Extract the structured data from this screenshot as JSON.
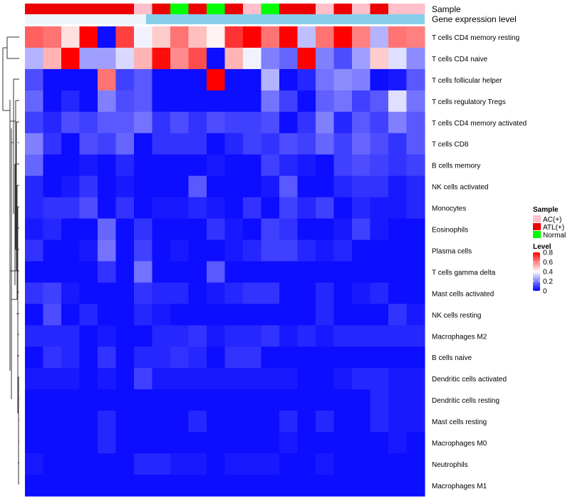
{
  "chart_data": {
    "type": "heatmap",
    "title": "",
    "annotation_tracks": [
      "Sample",
      "Gene expression level"
    ],
    "sample_groups": [
      "ATL",
      "ATL",
      "ATL",
      "ATL",
      "ATL",
      "ATL",
      "AC",
      "ATL",
      "Normal",
      "ATL",
      "Normal",
      "ATL",
      "AC",
      "Normal",
      "ATL",
      "ATL",
      "AC",
      "ATL",
      "AC",
      "ATL",
      "AC",
      "AC"
    ],
    "rows": [
      "T cells CD4 memory resting",
      "T cells CD4 naive",
      "T cells follicular helper",
      "T cells regulatory  Tregs",
      "T cells CD4 memory activated",
      "T cells CD8",
      "B cells memory",
      "NK cells activated",
      "Monocytes",
      "Eosinophils",
      "Plasma cells",
      "T cells gamma delta",
      "Mast cells activated",
      "NK cells resting",
      "Macrophages M2",
      "B cells naive",
      "Dendritic cells activated",
      "Dendritic cells resting",
      "Mast cells resting",
      "Macrophages M0",
      "Neutrophils",
      "Macrophages M1"
    ],
    "values": [
      [
        0.65,
        0.62,
        0.45,
        0.8,
        0.02,
        0.7,
        0.38,
        0.48,
        0.62,
        0.5,
        0.42,
        0.72,
        0.8,
        0.62,
        0.8,
        0.3,
        0.62,
        0.8,
        0.6,
        0.28,
        0.62,
        0.6
      ],
      [
        0.28,
        0.52,
        0.8,
        0.25,
        0.25,
        0.34,
        0.52,
        0.78,
        0.58,
        0.68,
        0.02,
        0.52,
        0.38,
        0.2,
        0.16,
        0.8,
        0.2,
        0.12,
        0.25,
        0.48,
        0.35,
        0.22
      ],
      [
        0.12,
        0.02,
        0.02,
        0.02,
        0.62,
        0.1,
        0.14,
        0.02,
        0.02,
        0.02,
        0.82,
        0.02,
        0.02,
        0.28,
        0.02,
        0.06,
        0.18,
        0.22,
        0.2,
        0.02,
        0.04,
        0.14
      ],
      [
        0.16,
        0.02,
        0.06,
        0.02,
        0.2,
        0.12,
        0.14,
        0.02,
        0.02,
        0.02,
        0.02,
        0.02,
        0.02,
        0.18,
        0.1,
        0.02,
        0.15,
        0.18,
        0.1,
        0.14,
        0.35,
        0.18
      ],
      [
        0.1,
        0.06,
        0.12,
        0.1,
        0.14,
        0.14,
        0.18,
        0.08,
        0.12,
        0.08,
        0.12,
        0.1,
        0.1,
        0.12,
        0.02,
        0.08,
        0.2,
        0.06,
        0.14,
        0.1,
        0.2,
        0.14
      ],
      [
        0.2,
        0.08,
        0.02,
        0.12,
        0.1,
        0.16,
        0.02,
        0.08,
        0.08,
        0.08,
        0.02,
        0.06,
        0.1,
        0.08,
        0.12,
        0.1,
        0.16,
        0.1,
        0.16,
        0.12,
        0.08,
        0.14
      ],
      [
        0.16,
        0.02,
        0.02,
        0.04,
        0.02,
        0.06,
        0.02,
        0.02,
        0.02,
        0.02,
        0.04,
        0.02,
        0.02,
        0.1,
        0.06,
        0.04,
        0.02,
        0.1,
        0.12,
        0.1,
        0.08,
        0.1
      ],
      [
        0.06,
        0.02,
        0.04,
        0.08,
        0.02,
        0.04,
        0.02,
        0.02,
        0.02,
        0.14,
        0.02,
        0.02,
        0.02,
        0.04,
        0.14,
        0.02,
        0.02,
        0.06,
        0.08,
        0.08,
        0.04,
        0.06
      ],
      [
        0.06,
        0.08,
        0.08,
        0.12,
        0.02,
        0.08,
        0.02,
        0.04,
        0.04,
        0.06,
        0.04,
        0.02,
        0.08,
        0.02,
        0.1,
        0.06,
        0.1,
        0.02,
        0.06,
        0.04,
        0.04,
        0.06
      ],
      [
        0.04,
        0.06,
        0.02,
        0.02,
        0.16,
        0.02,
        0.08,
        0.02,
        0.02,
        0.02,
        0.08,
        0.04,
        0.02,
        0.1,
        0.08,
        0.02,
        0.02,
        0.04,
        0.1,
        0.04,
        0.02,
        0.02
      ],
      [
        0.08,
        0.02,
        0.02,
        0.04,
        0.18,
        0.02,
        0.1,
        0.02,
        0.04,
        0.02,
        0.02,
        0.04,
        0.06,
        0.1,
        0.1,
        0.06,
        0.04,
        0.06,
        0.02,
        0.02,
        0.02,
        0.02
      ],
      [
        0.02,
        0.02,
        0.02,
        0.02,
        0.08,
        0.02,
        0.18,
        0.02,
        0.02,
        0.02,
        0.14,
        0.02,
        0.02,
        0.02,
        0.02,
        0.02,
        0.02,
        0.02,
        0.02,
        0.02,
        0.02,
        0.02
      ],
      [
        0.08,
        0.1,
        0.04,
        0.02,
        0.02,
        0.02,
        0.08,
        0.06,
        0.06,
        0.02,
        0.04,
        0.06,
        0.08,
        0.08,
        0.02,
        0.02,
        0.06,
        0.02,
        0.04,
        0.06,
        0.02,
        0.02
      ],
      [
        0.02,
        0.12,
        0.02,
        0.06,
        0.02,
        0.02,
        0.06,
        0.04,
        0.02,
        0.02,
        0.02,
        0.02,
        0.02,
        0.02,
        0.02,
        0.02,
        0.06,
        0.02,
        0.02,
        0.02,
        0.08,
        0.04
      ],
      [
        0.06,
        0.06,
        0.06,
        0.02,
        0.04,
        0.02,
        0.02,
        0.06,
        0.06,
        0.08,
        0.04,
        0.06,
        0.06,
        0.08,
        0.04,
        0.06,
        0.04,
        0.06,
        0.06,
        0.06,
        0.06,
        0.06
      ],
      [
        0.02,
        0.08,
        0.06,
        0.02,
        0.08,
        0.02,
        0.06,
        0.06,
        0.08,
        0.06,
        0.02,
        0.08,
        0.08,
        0.02,
        0.02,
        0.02,
        0.02,
        0.02,
        0.02,
        0.02,
        0.02,
        0.02
      ],
      [
        0.04,
        0.04,
        0.04,
        0.02,
        0.04,
        0.02,
        0.1,
        0.04,
        0.04,
        0.04,
        0.04,
        0.04,
        0.04,
        0.04,
        0.04,
        0.02,
        0.02,
        0.04,
        0.06,
        0.06,
        0.04,
        0.04
      ],
      [
        0.02,
        0.02,
        0.02,
        0.02,
        0.02,
        0.02,
        0.02,
        0.02,
        0.02,
        0.02,
        0.02,
        0.02,
        0.02,
        0.02,
        0.02,
        0.02,
        0.02,
        0.02,
        0.02,
        0.06,
        0.04,
        0.04
      ],
      [
        0.02,
        0.02,
        0.02,
        0.02,
        0.06,
        0.02,
        0.02,
        0.02,
        0.02,
        0.06,
        0.02,
        0.02,
        0.02,
        0.02,
        0.06,
        0.02,
        0.06,
        0.02,
        0.02,
        0.06,
        0.04,
        0.04
      ],
      [
        0.02,
        0.02,
        0.02,
        0.02,
        0.06,
        0.02,
        0.02,
        0.02,
        0.02,
        0.02,
        0.02,
        0.02,
        0.02,
        0.02,
        0.04,
        0.02,
        0.02,
        0.02,
        0.02,
        0.02,
        0.04,
        0.02
      ],
      [
        0.04,
        0.02,
        0.02,
        0.02,
        0.02,
        0.02,
        0.06,
        0.06,
        0.04,
        0.04,
        0.02,
        0.04,
        0.04,
        0.04,
        0.02,
        0.02,
        0.04,
        0.02,
        0.02,
        0.02,
        0.02,
        0.02
      ],
      [
        0.02,
        0.02,
        0.02,
        0.02,
        0.02,
        0.02,
        0.02,
        0.02,
        0.02,
        0.02,
        0.02,
        0.02,
        0.02,
        0.02,
        0.02,
        0.02,
        0.02,
        0.02,
        0.02,
        0.02,
        0.02,
        0.02
      ]
    ],
    "legend_sample": {
      "title": "Sample",
      "entries": [
        {
          "key": "AC",
          "label": "AC(+)",
          "color": "#ffc0cb"
        },
        {
          "key": "ATL",
          "label": "ATL(+)",
          "color": "#ee0000"
        },
        {
          "key": "Normal",
          "label": "Normal",
          "color": "#00ff00"
        }
      ]
    },
    "legend_level": {
      "title": "Level",
      "ticks": [
        "0.8",
        "0.6",
        "0.4",
        "0.2",
        "0"
      ],
      "tick_values": [
        0.8,
        0.6,
        0.4,
        0.2,
        0
      ],
      "range": [
        0,
        0.8
      ]
    },
    "color_scale": {
      "low": "#0000ff",
      "mid": "#ffffff",
      "high": "#ff0000",
      "midpoint": 0.4
    },
    "expression_bar_color": "#87ceeb"
  }
}
